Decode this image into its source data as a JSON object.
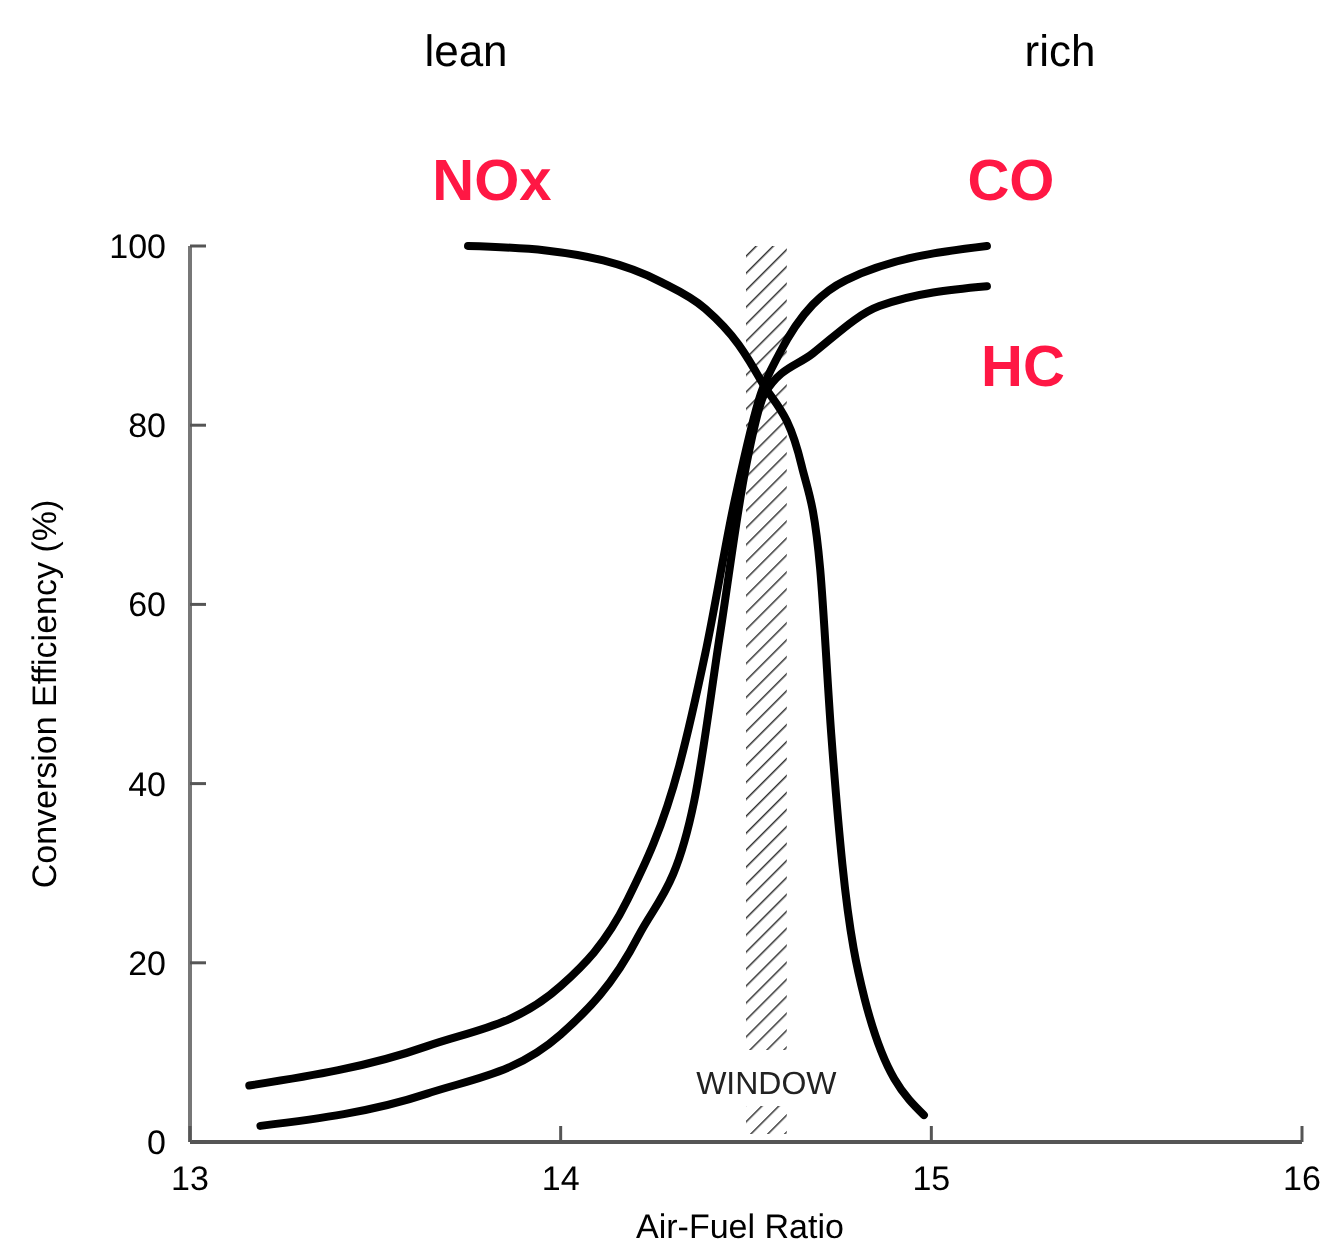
{
  "chart_data": {
    "type": "line",
    "xlabel": "Air-Fuel Ratio",
    "ylabel": "Conversion Efficiency (%)",
    "xlim": [
      13,
      16
    ],
    "xticks": [
      13,
      14,
      15,
      16
    ],
    "ylim": [
      0,
      100
    ],
    "yticks": [
      0,
      20,
      40,
      60,
      80,
      100
    ],
    "grid": false,
    "marker": "none",
    "line_style": "solid",
    "annotations": [
      "lean",
      "rich"
    ],
    "bands": [
      {
        "axis": "x",
        "from": 14.5,
        "to": 14.61,
        "label": "WINDOW",
        "color": "#333333"
      }
    ],
    "series": [
      {
        "name": "NOx",
        "color": "#000000",
        "x": [
          13.75,
          13.96,
          14.27,
          14.39,
          14.48,
          14.54,
          14.65,
          14.7,
          14.73,
          14.76,
          14.82,
          14.98
        ],
        "values": [
          100,
          99.5,
          96,
          93,
          89,
          85,
          75.5,
          64,
          45.5,
          31,
          16,
          3
        ]
      },
      {
        "name": "CO",
        "color": "#000000",
        "x": [
          13.16,
          13.64,
          14.0,
          14.18,
          14.32,
          14.39,
          14.47,
          14.54,
          14.59,
          14.77,
          15.15
        ],
        "values": [
          6.3,
          10.7,
          17.4,
          27,
          42,
          54.5,
          71.7,
          83.5,
          88,
          96.2,
          100
        ]
      },
      {
        "name": "HC",
        "color": "#000000",
        "x": [
          13.19,
          13.64,
          14.0,
          14.21,
          14.36,
          14.43,
          14.5,
          14.55,
          14.68,
          14.86,
          15.15
        ],
        "values": [
          1.8,
          5.4,
          12,
          23,
          38,
          56.7,
          75.4,
          83.5,
          88,
          93.3,
          95.5
        ]
      }
    ]
  }
}
